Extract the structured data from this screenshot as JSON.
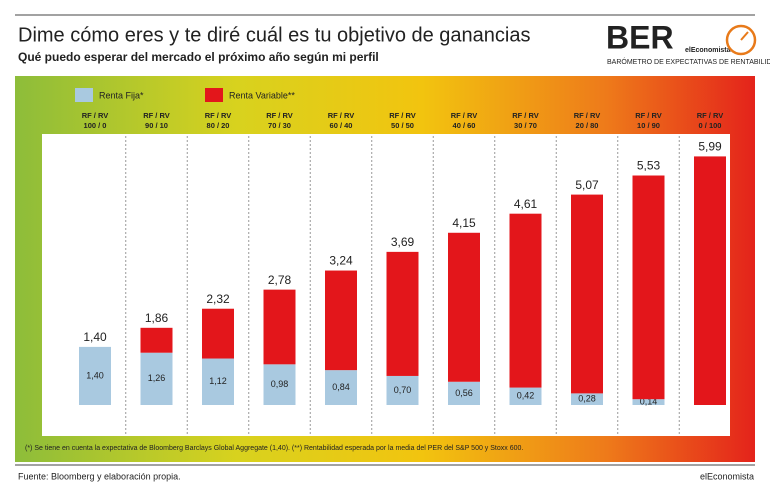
{
  "header": {
    "logo": "BER",
    "logo_brand": "elEconomista",
    "logo_tagline": "BARÓMETRO DE EXPECTATIVAS DE RENTABILIDAD"
  },
  "chart_data": {
    "type": "stacked_bar",
    "title": "Dime cómo eres y te diré cuál es tu objetivo de ganancias",
    "subtitle": "Qué puedo esperar del mercado el próximo año según mi perfil",
    "categories": [
      [
        "RF / RV",
        "100 / 0"
      ],
      [
        "RF / RV",
        "90 / 10"
      ],
      [
        "RF / RV",
        "80 / 20"
      ],
      [
        "RF / RV",
        "70 / 30"
      ],
      [
        "RF / RV",
        "60 / 40"
      ],
      [
        "RF / RV",
        "50 / 50"
      ],
      [
        "RF / RV",
        "40 / 60"
      ],
      [
        "RF / RV",
        "30 / 70"
      ],
      [
        "RF / RV",
        "20 / 80"
      ],
      [
        "RF / RV",
        "10 / 90"
      ],
      [
        "RF / RV",
        "0 / 100"
      ]
    ],
    "series": [
      {
        "name": "Renta Fija*",
        "color": "#a9c9e0",
        "values": [
          1.4,
          1.26,
          1.12,
          0.98,
          0.84,
          0.7,
          0.56,
          0.42,
          0.28,
          0.14,
          0
        ],
        "value_labels": [
          "1,40",
          "1,26",
          "1,12",
          "0,98",
          "0,84",
          "0,70",
          "0,56",
          "0,42",
          "0,28",
          "0,14",
          null
        ]
      },
      {
        "name": "Renta Variable**",
        "color": "#e3161b",
        "values": [
          0,
          0.6,
          1.2,
          1.8,
          2.4,
          2.99,
          3.59,
          4.19,
          4.79,
          5.39,
          5.99
        ]
      }
    ],
    "total_labels": [
      "1,40",
      "1,86",
      "2,32",
      "2,78",
      "3,24",
      "3,69",
      "4,15",
      "4,61",
      "5,07",
      "5,53",
      "5,99"
    ],
    "ylim": [
      0,
      6
    ],
    "footnote": "(*) Se tiene en cuenta la expectativa de Bloomberg Barclays Global Aggregate (1,40). (**) Rentabilidad esperada por la media del PER del S&P 500 y Stoxx 600.",
    "source": "Fuente: Bloomberg y elaboración propia.",
    "credit": "elEconomista"
  }
}
